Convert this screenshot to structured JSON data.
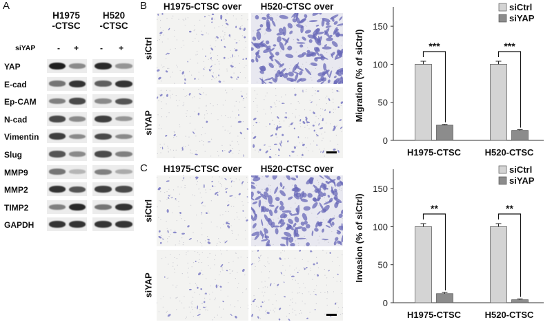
{
  "panels": {
    "a": {
      "letter": "A"
    },
    "b": {
      "letter": "B"
    },
    "c": {
      "letter": "C"
    }
  },
  "western_blot": {
    "lines": [
      {
        "name_line1": "H1975",
        "name_line2": "-CTSC"
      },
      {
        "name_line1": "H520",
        "name_line2": "-CTSC"
      }
    ],
    "treatment_label": "siYAP",
    "lanes": [
      "-",
      "+",
      "-",
      "+"
    ],
    "proteins": [
      {
        "name": "YAP",
        "intensity": [
          0.95,
          0.45,
          0.9,
          0.4
        ]
      },
      {
        "name": "E-cad",
        "intensity": [
          0.55,
          0.85,
          0.65,
          0.85
        ]
      },
      {
        "name": "Ep-CAM",
        "intensity": [
          0.5,
          0.75,
          0.45,
          0.7
        ]
      },
      {
        "name": "N-cad",
        "intensity": [
          0.75,
          0.45,
          0.8,
          0.4
        ]
      },
      {
        "name": "Vimentin",
        "intensity": [
          0.8,
          0.45,
          0.75,
          0.45
        ]
      },
      {
        "name": "Slug",
        "intensity": [
          0.7,
          0.45,
          0.75,
          0.5
        ]
      },
      {
        "name": "MMP9",
        "intensity": [
          0.55,
          0.25,
          0.5,
          0.3
        ]
      },
      {
        "name": "MMP2",
        "intensity": [
          0.85,
          0.7,
          0.8,
          0.75
        ]
      },
      {
        "name": "TIMP2",
        "intensity": [
          0.5,
          0.9,
          0.55,
          0.85
        ]
      },
      {
        "name": "GAPDH",
        "intensity": [
          0.85,
          0.85,
          0.85,
          0.85
        ]
      }
    ]
  },
  "micrographs": {
    "migration": {
      "col_headers": [
        "H1975-CTSC over",
        "H520-CTSC over"
      ],
      "row_labels": [
        "siCtrl",
        "siYAP"
      ],
      "density": [
        [
          0.25,
          1.0
        ],
        [
          0.08,
          0.35
        ]
      ]
    },
    "invasion": {
      "col_headers": [
        "H1975-CTSC over",
        "H520-CTSC over"
      ],
      "row_labels": [
        "siCtrl",
        "siYAP"
      ],
      "density": [
        [
          0.22,
          0.95
        ],
        [
          0.06,
          0.15
        ]
      ]
    }
  },
  "chart_data": [
    {
      "type": "bar",
      "ylabel": "Migration (% of siCtrl)",
      "categories": [
        "H1975-CTSC",
        "H520-CTSC"
      ],
      "series": [
        {
          "name": "siCtrl",
          "values": [
            100,
            100
          ],
          "errors": [
            4,
            4
          ],
          "color": "#d4d4d4"
        },
        {
          "name": "siYAP",
          "values": [
            20,
            13
          ],
          "errors": [
            1,
            1
          ],
          "color": "#8c8c8c"
        }
      ],
      "significance": [
        "***",
        "***"
      ],
      "ylim": [
        0,
        170
      ],
      "yticks": [
        "0",
        "50",
        "100",
        "150"
      ],
      "legend": "top-right",
      "grid": false
    },
    {
      "type": "bar",
      "ylabel": "Invasion (% of siCtrl)",
      "categories": [
        "H1975-CTSC",
        "H520-CTSC"
      ],
      "series": [
        {
          "name": "siCtrl",
          "values": [
            100,
            100
          ],
          "errors": [
            4,
            4
          ],
          "color": "#d4d4d4"
        },
        {
          "name": "siYAP",
          "values": [
            12,
            4
          ],
          "errors": [
            1.5,
            1
          ],
          "color": "#8c8c8c"
        }
      ],
      "significance": [
        "**",
        "**"
      ],
      "ylim": [
        0,
        170
      ],
      "yticks": [
        "0",
        "50",
        "100",
        "150"
      ],
      "legend": "top-right",
      "grid": false
    }
  ]
}
